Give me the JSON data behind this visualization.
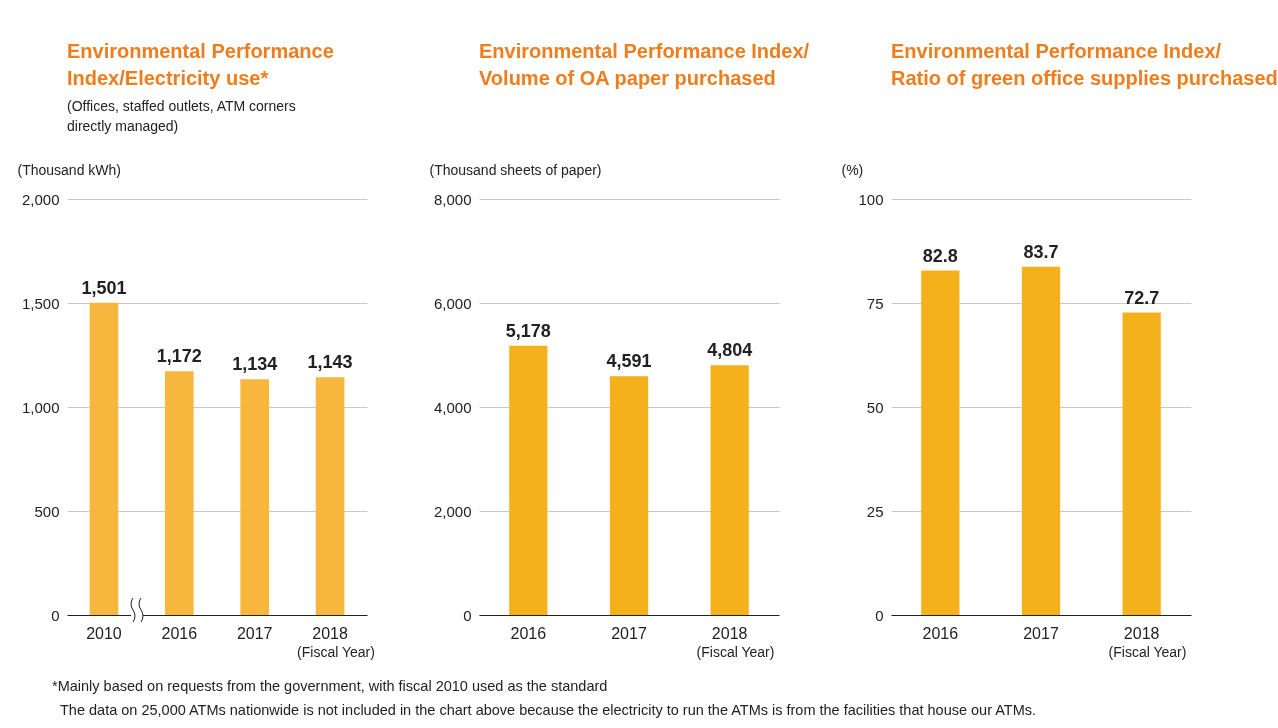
{
  "chart_data": [
    {
      "type": "bar",
      "title": "Environmental Performance Index/Electricity use*",
      "subtitle": "(Offices, staffed outlets, ATM corners directly managed)",
      "ylabel": "(Thousand kWh)",
      "xlabel": "(Fiscal Year)",
      "categories": [
        "2010",
        "2016",
        "2017",
        "2018"
      ],
      "values": [
        1501,
        1172,
        1134,
        1143
      ],
      "value_labels": [
        "1,501",
        "1,172",
        "1,134",
        "1,143"
      ],
      "color": "#f7b73f",
      "ylim": [
        0,
        2000
      ],
      "yticks": [
        {
          "value": 0,
          "label": "0"
        },
        {
          "value": 500,
          "label": "500"
        },
        {
          "value": 1000,
          "label": "1,000"
        },
        {
          "value": 1500,
          "label": "1,500"
        },
        {
          "value": 2000,
          "label": "2,000"
        }
      ],
      "grid": "y"
    },
    {
      "type": "bar",
      "title": "Environmental Performance Index/Volume of OA paper purchased",
      "ylabel": "(Thousand sheets of paper)",
      "xlabel": "(Fiscal Year)",
      "categories": [
        "2016",
        "2017",
        "2018"
      ],
      "values": [
        5178,
        4591,
        4804
      ],
      "value_labels": [
        "5,178",
        "4,591",
        "4,804"
      ],
      "color": "#f5b11b",
      "ylim": [
        0,
        8000
      ],
      "yticks": [
        {
          "value": 0,
          "label": "0"
        },
        {
          "value": 2000,
          "label": "2,000"
        },
        {
          "value": 4000,
          "label": "4,000"
        },
        {
          "value": 6000,
          "label": "6,000"
        },
        {
          "value": 8000,
          "label": "8,000"
        }
      ],
      "grid": "y"
    },
    {
      "type": "bar",
      "title": "Environmental Performance Index/Ratio of green office supplies purchased",
      "ylabel": "(%)",
      "xlabel": "(Fiscal Year)",
      "categories": [
        "2016",
        "2017",
        "2018"
      ],
      "values": [
        82.8,
        83.7,
        72.7
      ],
      "color": "#f5b11b",
      "ylim": [
        0,
        100
      ],
      "yticks": [
        0,
        25,
        50,
        75,
        100
      ],
      "grid": "y",
      "data_labels": true,
      "annotations": [
        "*Mainly based on requests from the government, with fiscal 2010 used as the standard",
        "The data on 25,000 ATMs nationwide is not included in the chart above because the electricity to run the ATMs is from the facilities that house our ATMs."
      ]
    }
  ]
}
